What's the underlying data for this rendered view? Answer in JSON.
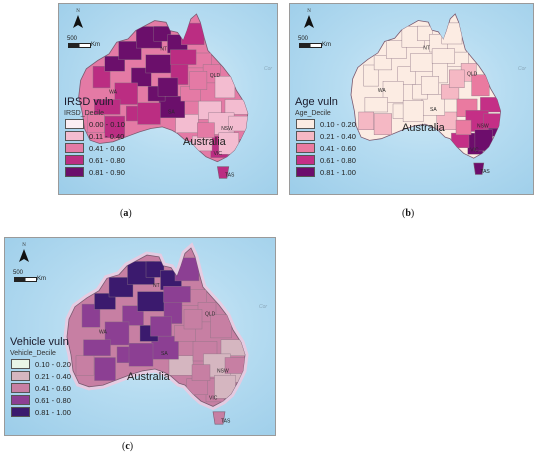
{
  "panels": [
    {
      "id": "a",
      "caption_letter": "a",
      "legend_title": "IRSD vuln",
      "legend_field": "IRSD_Decile",
      "classes": [
        {
          "range": "0.00 - 0.10",
          "color": "#fbeef3"
        },
        {
          "range": "0.11 - 0.40",
          "color": "#f3bcd0"
        },
        {
          "range": "0.41 - 0.60",
          "color": "#e47aa5"
        },
        {
          "range": "0.61 - 0.80",
          "color": "#bb2d82"
        },
        {
          "range": "0.81 - 0.90",
          "color": "#6b0f6b"
        }
      ],
      "country_label": "Australia",
      "state_labels": [
        "NT",
        "WA",
        "SA",
        "QLD",
        "NSW",
        "VIC",
        "TAS"
      ],
      "sea_label": "Cor"
    },
    {
      "id": "b",
      "caption_letter": "b",
      "legend_title": "Age vuln",
      "legend_field": "Age_Decile",
      "classes": [
        {
          "range": "0.10 - 0.20",
          "color": "#fcece3"
        },
        {
          "range": "0.21 - 0.40",
          "color": "#f5b8c4"
        },
        {
          "range": "0.41 - 0.60",
          "color": "#ea7aa0"
        },
        {
          "range": "0.61 - 0.80",
          "color": "#c42f86"
        },
        {
          "range": "0.81 - 1.00",
          "color": "#6d0d6c"
        }
      ],
      "country_label": "Australia",
      "state_labels": [
        "NT",
        "WA",
        "SA",
        "QLD",
        "NSW",
        "VIC",
        "TAS"
      ],
      "sea_label": "Cor"
    },
    {
      "id": "c",
      "caption_letter": "c",
      "legend_title": "Vehicle vuln",
      "legend_field": "Vehicle_Decile",
      "classes": [
        {
          "range": "0.10 - 0.20",
          "color": "#e9f5e7"
        },
        {
          "range": "0.21 - 0.40",
          "color": "#d5b6c0"
        },
        {
          "range": "0.41 - 0.60",
          "color": "#c77fa3"
        },
        {
          "range": "0.61 - 0.80",
          "color": "#8c3f93"
        },
        {
          "range": "0.81 - 1.00",
          "color": "#3b1a6e"
        }
      ],
      "country_label": "Australia",
      "state_labels": [
        "NT",
        "WA",
        "SA",
        "QLD",
        "NSW",
        "VIC",
        "TAS"
      ],
      "sea_label": "Cor"
    }
  ],
  "scale_bar": {
    "value": "500",
    "unit": "Km"
  },
  "north_letter": "N"
}
